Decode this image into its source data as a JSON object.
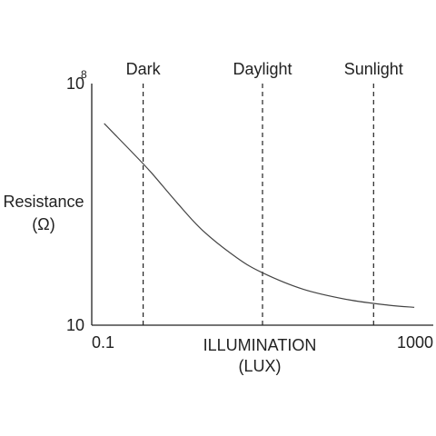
{
  "chart_data": {
    "type": "line",
    "x_scale": "log",
    "y_scale": "log",
    "xlim": [
      0.1,
      1000
    ],
    "ylim": [
      10,
      100000000
    ],
    "xticks": [
      {
        "value": 0.1,
        "label": "0.1"
      },
      {
        "value": 1000,
        "label": "1000"
      }
    ],
    "yticks": [
      {
        "value": 10,
        "base": "10",
        "exponent": ""
      },
      {
        "value": 100000000,
        "base": "10",
        "exponent": "8"
      }
    ],
    "xlabel": [
      "ILLUMINATION",
      "(LUX)"
    ],
    "ylabel": [
      "Resistance",
      "(Ω)"
    ],
    "grid": false,
    "series": [
      {
        "x": [
          0.14,
          0.2,
          0.3,
          0.5,
          1,
          2,
          5,
          10,
          30,
          100,
          300,
          600
        ],
        "y": [
          7000000,
          2800000,
          1000000,
          260000,
          35000,
          5500,
          900,
          330,
          110,
          55,
          38,
          33
        ]
      }
    ],
    "markers": [
      {
        "label": "Dark",
        "x": 0.4
      },
      {
        "label": "Daylight",
        "x": 10
      },
      {
        "label": "Sunlight",
        "x": 200
      }
    ]
  }
}
